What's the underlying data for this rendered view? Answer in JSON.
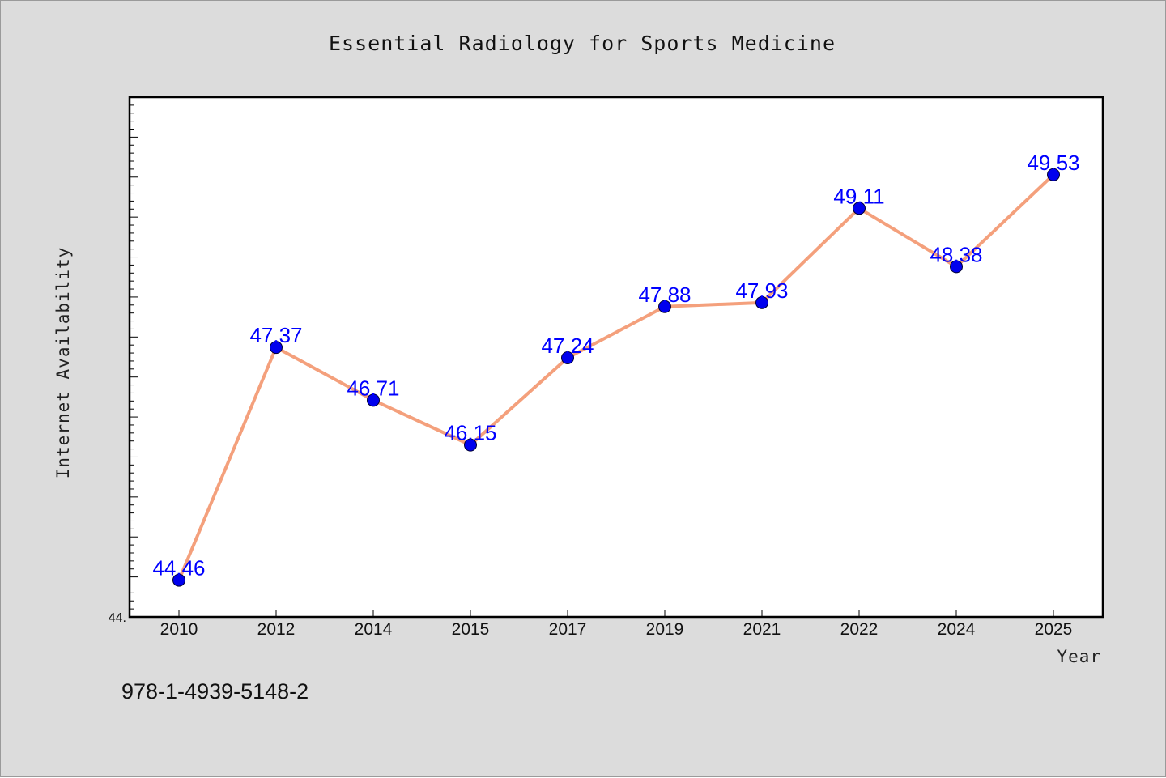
{
  "footnote": "978-1-4939-5148-2",
  "chart_data": {
    "type": "line",
    "title": "Essential Radiology for Sports Medicine",
    "xlabel": "Year",
    "ylabel": "Internet Availability",
    "categories": [
      "2010",
      "2012",
      "2014",
      "2015",
      "2017",
      "2019",
      "2021",
      "2022",
      "2024",
      "2025"
    ],
    "series": [
      {
        "values": [
          44.46,
          47.37,
          46.71,
          46.15,
          47.24,
          47.88,
          47.93,
          49.11,
          48.38,
          49.53
        ],
        "labels": [
          "44.46",
          "47.37",
          "46.71",
          "46.15",
          "47.24",
          "47.88",
          "47.93",
          "49.11",
          "48.38",
          "49.53"
        ],
        "line_color": "#f4a07c",
        "marker_color": "#0000ee",
        "label_color": "#0000ff"
      }
    ],
    "ylim": [
      44.0,
      50.5
    ],
    "y_tick_labels": [
      "44."
    ],
    "grid": false,
    "legend": "none"
  }
}
